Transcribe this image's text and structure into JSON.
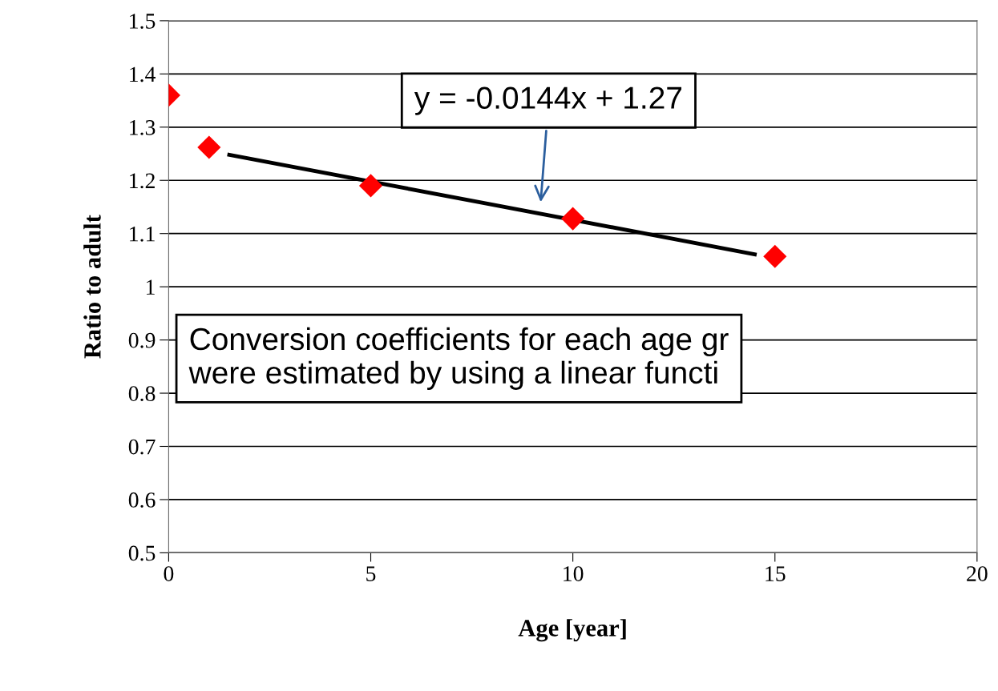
{
  "chart_data": {
    "type": "scatter",
    "xlabel": "Age [year]",
    "ylabel": "Ratio to adult",
    "x": [
      0,
      1,
      5,
      10,
      15
    ],
    "series": [
      {
        "color": "#ff0000",
        "marker": "diamond",
        "values": [
          1.36,
          1.262,
          1.19,
          1.128,
          1.057
        ]
      },
      {
        "type": "line",
        "color": "#000000",
        "marker": "none",
        "line_style": "solid",
        "x": [
          1.5,
          14.5
        ],
        "values": [
          1.248,
          1.061
        ]
      }
    ],
    "xlim": [
      0,
      20
    ],
    "xticks": [
      0,
      5,
      10,
      15,
      20
    ],
    "ylim": [
      0.5,
      1.5
    ],
    "yticks": [
      0.5,
      0.6,
      0.7,
      0.8,
      0.9,
      {
        "value": 1.0,
        "label": "1"
      },
      1.1,
      1.2,
      1.3,
      1.4,
      1.5
    ],
    "grid": "y",
    "annotations": [
      "y = -0.0144x + 1.27",
      "Conversion coefficients for each age gr\nwere estimated by using a linear functi"
    ]
  }
}
